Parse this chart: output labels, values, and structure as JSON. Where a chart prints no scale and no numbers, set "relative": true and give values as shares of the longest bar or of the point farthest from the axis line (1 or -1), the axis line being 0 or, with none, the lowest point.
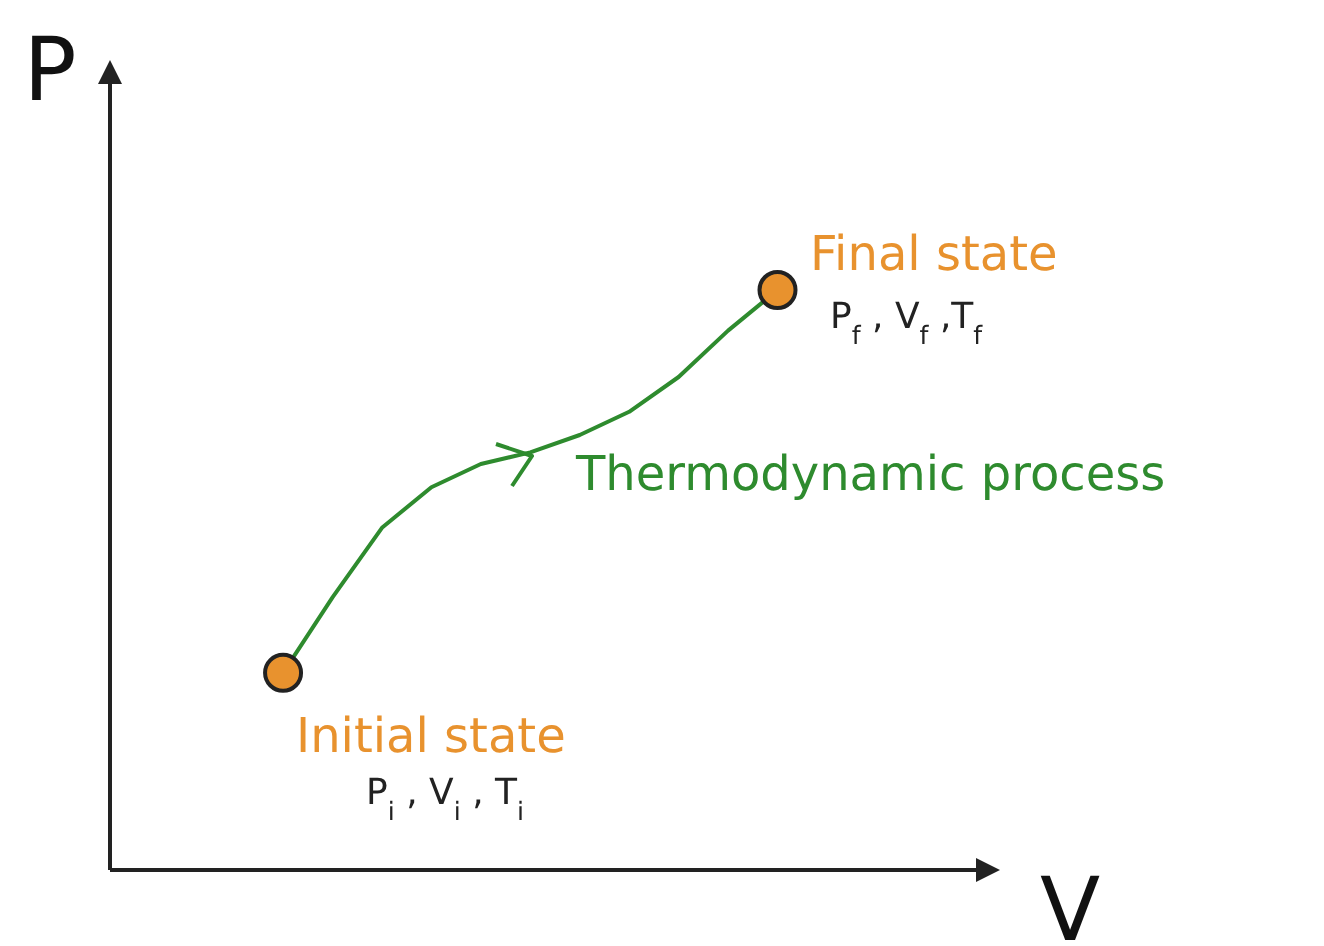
{
  "chart_data": {
    "type": "line",
    "relative": true,
    "xlabel": "V",
    "ylabel": "P",
    "categories": [
      null,
      null,
      null,
      null,
      null,
      null,
      null,
      null,
      null,
      null,
      null,
      null,
      null,
      null,
      null,
      null,
      null,
      null
    ],
    "series": [
      {
        "color": "#2e8b2e",
        "marker": "none",
        "values": [
          null,
          null,
          null,
          0.34,
          0.47,
          0.59,
          0.66,
          0.7,
          0.72,
          0.75,
          0.79,
          0.85,
          0.93,
          1,
          null,
          null,
          null,
          null
        ]
      }
    ],
    "annotations": [
      "Final state",
      "P$_{f}$ , V$_{f}$ ,T$_{f}$",
      "Thermodynamic process",
      "Initial state",
      "P$_{i}$ , V$_{i}$ , T$_{i}$"
    ]
  }
}
